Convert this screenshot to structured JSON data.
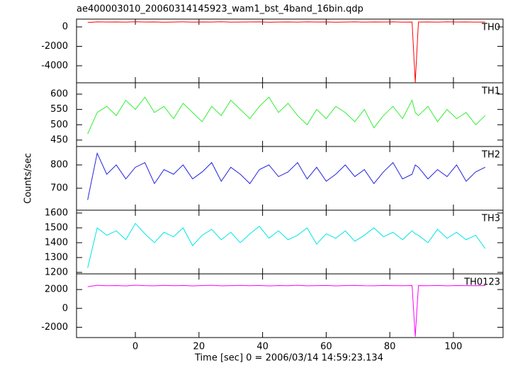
{
  "title": "ae400003010_20060314145923_wam1_bst_4band_16bin.qdp",
  "xlabel": "Time [sec] 0 = 2006/03/14 14:59:23.134",
  "ylabel": "Counts/sec",
  "xlim": [
    -18.5,
    115.6
  ],
  "xticks": [
    0,
    20,
    40,
    60,
    80,
    100
  ],
  "chart_data": [
    {
      "type": "line",
      "label": "TH0",
      "color": "#ff0000",
      "ylim": [
        -5750,
        800
      ],
      "yticks": [
        0,
        -2000,
        -4000
      ],
      "x": [
        -15,
        -12,
        -9,
        -6,
        -3,
        0,
        3,
        6,
        9,
        12,
        15,
        18,
        21,
        24,
        27,
        30,
        33,
        36,
        39,
        42,
        45,
        48,
        51,
        54,
        57,
        60,
        63,
        66,
        69,
        72,
        75,
        78,
        81,
        84,
        87,
        88,
        89,
        92,
        95,
        98,
        101,
        104,
        107,
        110
      ],
      "values": [
        450,
        520,
        500,
        510,
        490,
        530,
        500,
        510,
        480,
        500,
        520,
        490,
        510,
        500,
        530,
        490,
        500,
        510,
        520,
        480,
        500,
        510,
        490,
        520,
        500,
        510,
        480,
        500,
        520,
        490,
        510,
        500,
        520,
        490,
        500,
        -5700,
        500,
        510,
        490,
        520,
        500,
        510,
        490,
        500
      ]
    },
    {
      "type": "line",
      "label": "TH1",
      "color": "#33ee33",
      "ylim": [
        429,
        637
      ],
      "yticks": [
        600,
        550,
        500,
        450
      ],
      "x": [
        -15,
        -12,
        -9,
        -6,
        -3,
        0,
        3,
        6,
        9,
        12,
        15,
        18,
        21,
        24,
        27,
        30,
        33,
        36,
        39,
        42,
        45,
        48,
        51,
        54,
        57,
        60,
        63,
        66,
        69,
        72,
        75,
        78,
        81,
        84,
        87,
        88,
        89,
        92,
        95,
        98,
        101,
        104,
        107,
        110
      ],
      "values": [
        470,
        540,
        560,
        530,
        580,
        550,
        590,
        540,
        560,
        520,
        570,
        540,
        510,
        560,
        530,
        580,
        550,
        520,
        560,
        590,
        540,
        570,
        530,
        500,
        550,
        520,
        560,
        540,
        510,
        550,
        490,
        530,
        560,
        520,
        580,
        540,
        530,
        560,
        510,
        550,
        520,
        540,
        500,
        530
      ]
    },
    {
      "type": "line",
      "label": "TH2",
      "color": "#2222dd",
      "ylim": [
        606,
        879
      ],
      "yticks": [
        800,
        700
      ],
      "x": [
        -15,
        -12,
        -9,
        -6,
        -3,
        0,
        3,
        6,
        9,
        12,
        15,
        18,
        21,
        24,
        27,
        30,
        33,
        36,
        39,
        42,
        45,
        48,
        51,
        54,
        57,
        60,
        63,
        66,
        69,
        72,
        75,
        78,
        81,
        84,
        87,
        88,
        89,
        92,
        95,
        98,
        101,
        104,
        107,
        110
      ],
      "values": [
        650,
        850,
        760,
        800,
        740,
        790,
        810,
        720,
        780,
        760,
        800,
        740,
        770,
        810,
        730,
        790,
        760,
        720,
        780,
        800,
        750,
        770,
        810,
        740,
        790,
        730,
        760,
        800,
        750,
        780,
        720,
        770,
        810,
        740,
        760,
        800,
        790,
        740,
        780,
        750,
        800,
        730,
        770,
        790
      ]
    },
    {
      "type": "line",
      "label": "TH3",
      "color": "#00e5e5",
      "ylim": [
        1190,
        1619
      ],
      "yticks": [
        1600,
        1500,
        1400,
        1300,
        1200
      ],
      "x": [
        -15,
        -12,
        -9,
        -6,
        -3,
        0,
        3,
        6,
        9,
        12,
        15,
        18,
        21,
        24,
        27,
        30,
        33,
        36,
        39,
        42,
        45,
        48,
        51,
        54,
        57,
        60,
        63,
        66,
        69,
        72,
        75,
        78,
        81,
        84,
        87,
        88,
        89,
        92,
        95,
        98,
        101,
        104,
        107,
        110
      ],
      "values": [
        1230,
        1500,
        1450,
        1480,
        1420,
        1530,
        1460,
        1400,
        1470,
        1440,
        1500,
        1380,
        1450,
        1490,
        1420,
        1470,
        1400,
        1460,
        1510,
        1430,
        1480,
        1420,
        1450,
        1500,
        1390,
        1460,
        1430,
        1480,
        1410,
        1450,
        1500,
        1440,
        1470,
        1420,
        1480,
        1460,
        1450,
        1400,
        1490,
        1430,
        1470,
        1420,
        1450,
        1360
      ]
    },
    {
      "type": "line",
      "label": "TH0123",
      "color": "#ff00ff",
      "ylim": [
        -3094,
        3660
      ],
      "yticks": [
        2000,
        0,
        -2000
      ],
      "x": [
        -15,
        -12,
        -9,
        -6,
        -3,
        0,
        3,
        6,
        9,
        12,
        15,
        18,
        21,
        24,
        27,
        30,
        33,
        36,
        39,
        42,
        45,
        48,
        51,
        54,
        57,
        60,
        63,
        66,
        69,
        72,
        75,
        78,
        81,
        84,
        87,
        88,
        89,
        92,
        95,
        98,
        101,
        104,
        107,
        110
      ],
      "values": [
        2300,
        2450,
        2400,
        2420,
        2380,
        2460,
        2410,
        2390,
        2440,
        2400,
        2430,
        2380,
        2420,
        2450,
        2390,
        2410,
        2440,
        2400,
        2430,
        2380,
        2420,
        2400,
        2450,
        2390,
        2410,
        2430,
        2380,
        2420,
        2440,
        2400,
        2390,
        2430,
        2410,
        2400,
        2420,
        -3000,
        2410,
        2400,
        2430,
        2390,
        2420,
        2410,
        2400,
        2420
      ]
    }
  ]
}
